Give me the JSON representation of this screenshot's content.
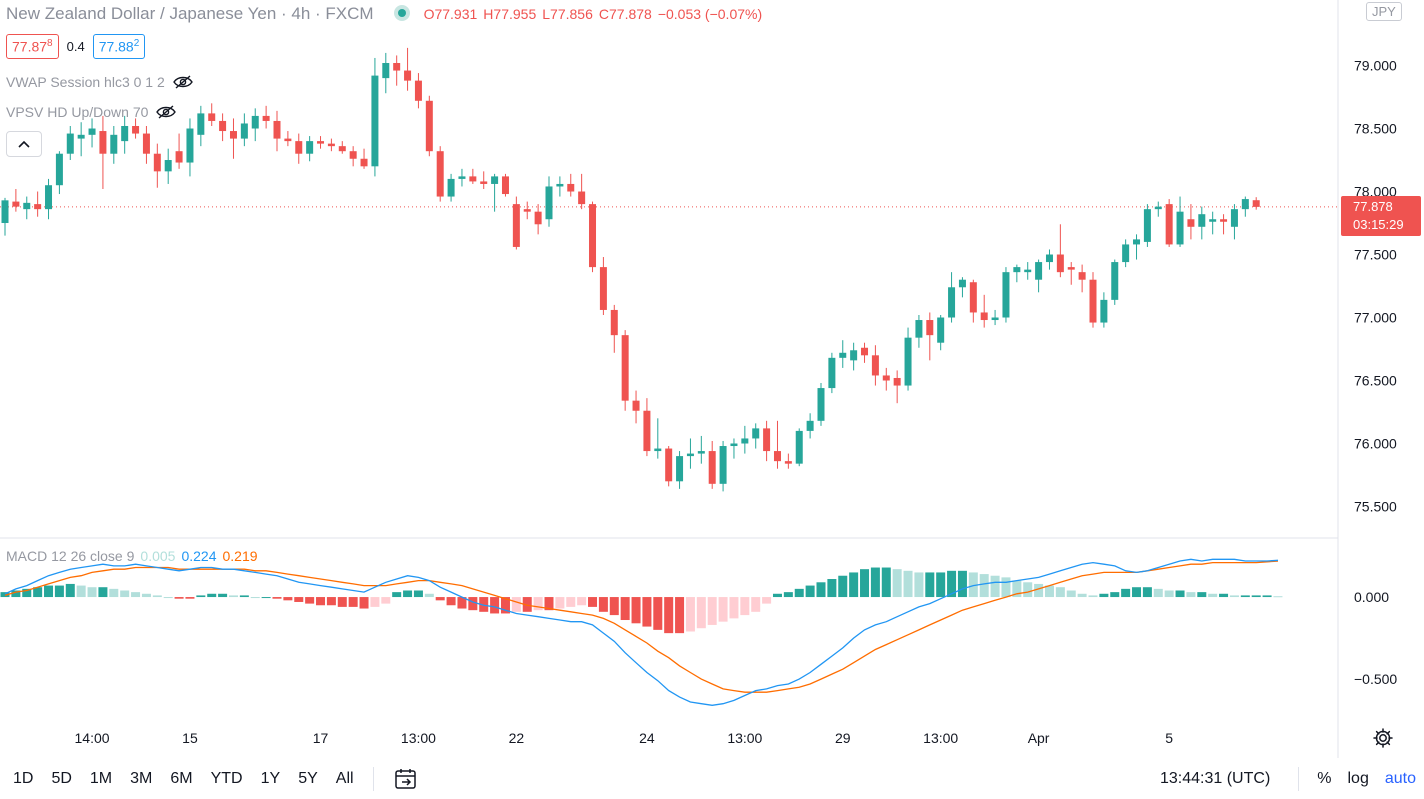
{
  "header": {
    "symbol_title": "New Zealand Dollar / Japanese Yen · 4h · FXCM",
    "ohlc": {
      "o_label": "O",
      "o_value": "77.931",
      "h_label": "H",
      "h_value": "77.955",
      "l_label": "L",
      "l_value": "77.856",
      "c_label": "C",
      "c_value": "77.878",
      "change": "−0.053 (−0.07%)"
    }
  },
  "quote": {
    "bid_main": "77.87",
    "bid_pip": "8",
    "spread": "0.4",
    "ask_main": "77.88",
    "ask_pip": "2"
  },
  "indicators": {
    "vwap": "VWAP Session hlc3 0 1 2",
    "vpsv": "VPSV HD Up/Down 70",
    "macd_label": "MACD 12 26 close 9",
    "macd_hist": "0.005",
    "macd_line": "0.224",
    "macd_signal": "0.219"
  },
  "price_axis": {
    "currency": "JPY",
    "last_price": "77.878",
    "countdown": "03:15:29"
  },
  "bottom_bar": {
    "ranges": [
      "1D",
      "5D",
      "1M",
      "3M",
      "6M",
      "YTD",
      "1Y",
      "5Y",
      "All"
    ],
    "time": "13:44:31 (UTC)",
    "percent": "%",
    "log": "log",
    "auto": "auto"
  },
  "colors": {
    "up": "#26a69a",
    "down": "#ef5350",
    "macd_line": "#2196f3",
    "signal_line": "#ff6d00",
    "hist_up_strong": "#26a69a",
    "hist_up_weak": "#b2dfdb",
    "hist_down_strong": "#ef5350",
    "hist_down_weak": "#ffcdd2"
  },
  "chart_data": {
    "type": "candlestick",
    "x_tick_labels": [
      "14:00",
      "15",
      "17",
      "13:00",
      "22",
      "24",
      "13:00",
      "29",
      "13:00",
      "Apr",
      "5"
    ],
    "x_tick_candle_index": [
      8,
      17,
      29,
      38,
      47,
      59,
      68,
      77,
      86,
      95,
      107
    ],
    "y_ticks": [
      75.5,
      76.0,
      76.5,
      77.0,
      77.5,
      78.0,
      78.5,
      79.0
    ],
    "y_tick_labels": [
      "75.500",
      "76.000",
      "76.500",
      "77.000",
      "77.500",
      "78.000",
      "78.500",
      "79.000"
    ],
    "ylim": [
      75.25,
      79.52
    ],
    "last_price": 77.878,
    "candles": [
      {
        "o": 77.75,
        "h": 77.95,
        "l": 77.65,
        "c": 77.93
      },
      {
        "o": 77.92,
        "h": 78.02,
        "l": 77.84,
        "c": 77.88
      },
      {
        "o": 77.86,
        "h": 77.96,
        "l": 77.78,
        "c": 77.91
      },
      {
        "o": 77.9,
        "h": 78.0,
        "l": 77.8,
        "c": 77.86
      },
      {
        "o": 77.86,
        "h": 78.1,
        "l": 77.78,
        "c": 78.05
      },
      {
        "o": 78.05,
        "h": 78.32,
        "l": 77.98,
        "c": 78.3
      },
      {
        "o": 78.3,
        "h": 78.52,
        "l": 78.25,
        "c": 78.46
      },
      {
        "o": 78.42,
        "h": 78.55,
        "l": 78.28,
        "c": 78.45
      },
      {
        "o": 78.45,
        "h": 78.58,
        "l": 78.35,
        "c": 78.5
      },
      {
        "o": 78.48,
        "h": 78.6,
        "l": 78.02,
        "c": 78.3
      },
      {
        "o": 78.3,
        "h": 78.52,
        "l": 78.22,
        "c": 78.45
      },
      {
        "o": 78.4,
        "h": 78.6,
        "l": 78.3,
        "c": 78.52
      },
      {
        "o": 78.52,
        "h": 78.58,
        "l": 78.42,
        "c": 78.46
      },
      {
        "o": 78.46,
        "h": 78.52,
        "l": 78.22,
        "c": 78.3
      },
      {
        "o": 78.3,
        "h": 78.38,
        "l": 78.03,
        "c": 78.16
      },
      {
        "o": 78.16,
        "h": 78.34,
        "l": 78.06,
        "c": 78.25
      },
      {
        "o": 78.32,
        "h": 78.46,
        "l": 78.18,
        "c": 78.23
      },
      {
        "o": 78.23,
        "h": 78.58,
        "l": 78.12,
        "c": 78.5
      },
      {
        "o": 78.45,
        "h": 78.68,
        "l": 78.36,
        "c": 78.62
      },
      {
        "o": 78.62,
        "h": 78.7,
        "l": 78.52,
        "c": 78.56
      },
      {
        "o": 78.56,
        "h": 78.62,
        "l": 78.4,
        "c": 78.48
      },
      {
        "o": 78.48,
        "h": 78.58,
        "l": 78.26,
        "c": 78.42
      },
      {
        "o": 78.42,
        "h": 78.62,
        "l": 78.36,
        "c": 78.54
      },
      {
        "o": 78.5,
        "h": 78.66,
        "l": 78.4,
        "c": 78.6
      },
      {
        "o": 78.6,
        "h": 78.68,
        "l": 78.5,
        "c": 78.56
      },
      {
        "o": 78.56,
        "h": 78.64,
        "l": 78.32,
        "c": 78.42
      },
      {
        "o": 78.42,
        "h": 78.48,
        "l": 78.36,
        "c": 78.4
      },
      {
        "o": 78.4,
        "h": 78.46,
        "l": 78.22,
        "c": 78.3
      },
      {
        "o": 78.3,
        "h": 78.44,
        "l": 78.24,
        "c": 78.4
      },
      {
        "o": 78.4,
        "h": 78.44,
        "l": 78.34,
        "c": 78.38
      },
      {
        "o": 78.38,
        "h": 78.42,
        "l": 78.32,
        "c": 78.36
      },
      {
        "o": 78.36,
        "h": 78.4,
        "l": 78.3,
        "c": 78.32
      },
      {
        "o": 78.32,
        "h": 78.36,
        "l": 78.2,
        "c": 78.26
      },
      {
        "o": 78.26,
        "h": 78.34,
        "l": 78.18,
        "c": 78.2
      },
      {
        "o": 78.2,
        "h": 79.06,
        "l": 78.12,
        "c": 78.92
      },
      {
        "o": 78.9,
        "h": 79.1,
        "l": 78.78,
        "c": 79.02
      },
      {
        "o": 79.02,
        "h": 79.08,
        "l": 78.84,
        "c": 78.96
      },
      {
        "o": 78.96,
        "h": 79.14,
        "l": 78.8,
        "c": 78.88
      },
      {
        "o": 78.88,
        "h": 78.94,
        "l": 78.66,
        "c": 78.72
      },
      {
        "o": 78.72,
        "h": 78.76,
        "l": 78.28,
        "c": 78.32
      },
      {
        "o": 78.32,
        "h": 78.36,
        "l": 77.92,
        "c": 77.96
      },
      {
        "o": 77.96,
        "h": 78.14,
        "l": 77.92,
        "c": 78.1
      },
      {
        "o": 78.1,
        "h": 78.18,
        "l": 78.04,
        "c": 78.12
      },
      {
        "o": 78.12,
        "h": 78.18,
        "l": 78.06,
        "c": 78.08
      },
      {
        "o": 78.08,
        "h": 78.16,
        "l": 78.02,
        "c": 78.06
      },
      {
        "o": 78.06,
        "h": 78.14,
        "l": 77.84,
        "c": 78.12
      },
      {
        "o": 78.12,
        "h": 78.14,
        "l": 77.96,
        "c": 77.98
      },
      {
        "o": 77.9,
        "h": 77.96,
        "l": 77.54,
        "c": 77.56
      },
      {
        "o": 77.86,
        "h": 77.92,
        "l": 77.78,
        "c": 77.84
      },
      {
        "o": 77.84,
        "h": 77.9,
        "l": 77.66,
        "c": 77.74
      },
      {
        "o": 77.78,
        "h": 78.12,
        "l": 77.72,
        "c": 78.04
      },
      {
        "o": 78.04,
        "h": 78.12,
        "l": 77.96,
        "c": 78.06
      },
      {
        "o": 78.06,
        "h": 78.14,
        "l": 77.96,
        "c": 78.0
      },
      {
        "o": 78.0,
        "h": 78.14,
        "l": 77.86,
        "c": 77.9
      },
      {
        "o": 77.9,
        "h": 77.92,
        "l": 77.36,
        "c": 77.4
      },
      {
        "o": 77.4,
        "h": 77.48,
        "l": 77.02,
        "c": 77.06
      },
      {
        "o": 77.06,
        "h": 77.1,
        "l": 76.72,
        "c": 76.86
      },
      {
        "o": 76.86,
        "h": 76.9,
        "l": 76.26,
        "c": 76.34
      },
      {
        "o": 76.34,
        "h": 76.42,
        "l": 76.16,
        "c": 76.26
      },
      {
        "o": 76.26,
        "h": 76.36,
        "l": 75.9,
        "c": 75.94
      },
      {
        "o": 75.94,
        "h": 76.2,
        "l": 75.88,
        "c": 75.96
      },
      {
        "o": 75.96,
        "h": 75.98,
        "l": 75.66,
        "c": 75.7
      },
      {
        "o": 75.7,
        "h": 75.94,
        "l": 75.64,
        "c": 75.9
      },
      {
        "o": 75.9,
        "h": 76.04,
        "l": 75.8,
        "c": 75.92
      },
      {
        "o": 75.92,
        "h": 76.06,
        "l": 75.84,
        "c": 75.94
      },
      {
        "o": 75.94,
        "h": 76.02,
        "l": 75.64,
        "c": 75.68
      },
      {
        "o": 75.68,
        "h": 76.02,
        "l": 75.62,
        "c": 75.98
      },
      {
        "o": 75.98,
        "h": 76.04,
        "l": 75.88,
        "c": 76.0
      },
      {
        "o": 76.0,
        "h": 76.14,
        "l": 75.92,
        "c": 76.04
      },
      {
        "o": 76.04,
        "h": 76.16,
        "l": 75.96,
        "c": 76.12
      },
      {
        "o": 76.12,
        "h": 76.18,
        "l": 75.86,
        "c": 75.94
      },
      {
        "o": 75.94,
        "h": 76.18,
        "l": 75.8,
        "c": 75.86
      },
      {
        "o": 75.86,
        "h": 75.92,
        "l": 75.8,
        "c": 75.84
      },
      {
        "o": 75.84,
        "h": 76.12,
        "l": 75.82,
        "c": 76.1
      },
      {
        "o": 76.1,
        "h": 76.24,
        "l": 76.04,
        "c": 76.18
      },
      {
        "o": 76.18,
        "h": 76.48,
        "l": 76.14,
        "c": 76.44
      },
      {
        "o": 76.44,
        "h": 76.72,
        "l": 76.4,
        "c": 76.68
      },
      {
        "o": 76.68,
        "h": 76.82,
        "l": 76.6,
        "c": 76.72
      },
      {
        "o": 76.66,
        "h": 76.8,
        "l": 76.58,
        "c": 76.74
      },
      {
        "o": 76.76,
        "h": 76.8,
        "l": 76.64,
        "c": 76.7
      },
      {
        "o": 76.7,
        "h": 76.78,
        "l": 76.46,
        "c": 76.54
      },
      {
        "o": 76.54,
        "h": 76.6,
        "l": 76.42,
        "c": 76.5
      },
      {
        "o": 76.52,
        "h": 76.58,
        "l": 76.32,
        "c": 76.46
      },
      {
        "o": 76.46,
        "h": 76.92,
        "l": 76.42,
        "c": 76.84
      },
      {
        "o": 76.84,
        "h": 77.02,
        "l": 76.76,
        "c": 76.98
      },
      {
        "o": 76.98,
        "h": 77.04,
        "l": 76.66,
        "c": 76.86
      },
      {
        "o": 76.8,
        "h": 77.02,
        "l": 76.74,
        "c": 77.0
      },
      {
        "o": 77.0,
        "h": 77.36,
        "l": 76.96,
        "c": 77.24
      },
      {
        "o": 77.24,
        "h": 77.32,
        "l": 77.16,
        "c": 77.3
      },
      {
        "o": 77.28,
        "h": 77.3,
        "l": 76.96,
        "c": 77.04
      },
      {
        "o": 77.04,
        "h": 77.18,
        "l": 76.92,
        "c": 76.98
      },
      {
        "o": 76.98,
        "h": 77.06,
        "l": 76.94,
        "c": 77.0
      },
      {
        "o": 77.0,
        "h": 77.4,
        "l": 76.96,
        "c": 77.36
      },
      {
        "o": 77.36,
        "h": 77.42,
        "l": 77.28,
        "c": 77.4
      },
      {
        "o": 77.36,
        "h": 77.44,
        "l": 77.3,
        "c": 77.38
      },
      {
        "o": 77.3,
        "h": 77.46,
        "l": 77.2,
        "c": 77.44
      },
      {
        "o": 77.44,
        "h": 77.54,
        "l": 77.38,
        "c": 77.5
      },
      {
        "o": 77.5,
        "h": 77.74,
        "l": 77.32,
        "c": 77.36
      },
      {
        "o": 77.4,
        "h": 77.44,
        "l": 77.26,
        "c": 77.38
      },
      {
        "o": 77.36,
        "h": 77.42,
        "l": 77.2,
        "c": 77.3
      },
      {
        "o": 77.3,
        "h": 77.36,
        "l": 76.92,
        "c": 76.96
      },
      {
        "o": 76.96,
        "h": 77.2,
        "l": 76.92,
        "c": 77.14
      },
      {
        "o": 77.14,
        "h": 77.46,
        "l": 77.1,
        "c": 77.44
      },
      {
        "o": 77.44,
        "h": 77.62,
        "l": 77.4,
        "c": 77.58
      },
      {
        "o": 77.58,
        "h": 77.66,
        "l": 77.46,
        "c": 77.62
      },
      {
        "o": 77.6,
        "h": 77.9,
        "l": 77.56,
        "c": 77.86
      },
      {
        "o": 77.86,
        "h": 77.92,
        "l": 77.8,
        "c": 77.88
      },
      {
        "o": 77.9,
        "h": 77.94,
        "l": 77.56,
        "c": 77.58
      },
      {
        "o": 77.58,
        "h": 77.96,
        "l": 77.56,
        "c": 77.84
      },
      {
        "o": 77.78,
        "h": 77.9,
        "l": 77.62,
        "c": 77.72
      },
      {
        "o": 77.72,
        "h": 77.88,
        "l": 77.62,
        "c": 77.82
      },
      {
        "o": 77.76,
        "h": 77.84,
        "l": 77.66,
        "c": 77.78
      },
      {
        "o": 77.78,
        "h": 77.82,
        "l": 77.66,
        "c": 77.76
      },
      {
        "o": 77.72,
        "h": 77.9,
        "l": 77.62,
        "c": 77.86
      },
      {
        "o": 77.86,
        "h": 77.96,
        "l": 77.8,
        "c": 77.94
      },
      {
        "o": 77.931,
        "h": 77.955,
        "l": 77.856,
        "c": 77.878
      }
    ],
    "macd": {
      "y_ticks": [
        -0.5,
        0.0
      ],
      "y_tick_labels": [
        "−0.500",
        "0.000"
      ],
      "ylim": [
        -0.78,
        0.36
      ],
      "macd_line": [
        0.02,
        0.05,
        0.07,
        0.1,
        0.13,
        0.15,
        0.17,
        0.18,
        0.19,
        0.2,
        0.19,
        0.19,
        0.2,
        0.19,
        0.18,
        0.17,
        0.16,
        0.17,
        0.18,
        0.18,
        0.17,
        0.17,
        0.16,
        0.15,
        0.14,
        0.13,
        0.11,
        0.09,
        0.08,
        0.07,
        0.06,
        0.05,
        0.04,
        0.03,
        0.06,
        0.09,
        0.11,
        0.13,
        0.12,
        0.1,
        0.06,
        0.03,
        0.0,
        -0.03,
        -0.05,
        -0.06,
        -0.08,
        -0.1,
        -0.11,
        -0.12,
        -0.13,
        -0.14,
        -0.15,
        -0.15,
        -0.17,
        -0.22,
        -0.27,
        -0.34,
        -0.4,
        -0.46,
        -0.51,
        -0.57,
        -0.61,
        -0.64,
        -0.65,
        -0.66,
        -0.65,
        -0.63,
        -0.6,
        -0.57,
        -0.56,
        -0.54,
        -0.53,
        -0.5,
        -0.46,
        -0.41,
        -0.36,
        -0.31,
        -0.25,
        -0.2,
        -0.17,
        -0.15,
        -0.12,
        -0.09,
        -0.06,
        -0.04,
        -0.01,
        0.02,
        0.05,
        0.07,
        0.08,
        0.09,
        0.09,
        0.1,
        0.11,
        0.12,
        0.14,
        0.16,
        0.18,
        0.2,
        0.21,
        0.2,
        0.19,
        0.16,
        0.15,
        0.16,
        0.18,
        0.2,
        0.22,
        0.23,
        0.22,
        0.23,
        0.23,
        0.23,
        0.22,
        0.22,
        0.22,
        0.224
      ],
      "signal_line": [
        0.01,
        0.03,
        0.04,
        0.06,
        0.08,
        0.1,
        0.12,
        0.13,
        0.15,
        0.16,
        0.17,
        0.17,
        0.18,
        0.18,
        0.18,
        0.18,
        0.17,
        0.17,
        0.17,
        0.17,
        0.17,
        0.17,
        0.17,
        0.16,
        0.16,
        0.15,
        0.14,
        0.13,
        0.12,
        0.11,
        0.1,
        0.09,
        0.08,
        0.07,
        0.07,
        0.07,
        0.08,
        0.09,
        0.1,
        0.1,
        0.09,
        0.08,
        0.07,
        0.05,
        0.03,
        0.01,
        -0.01,
        -0.03,
        -0.05,
        -0.06,
        -0.07,
        -0.08,
        -0.09,
        -0.1,
        -0.11,
        -0.13,
        -0.16,
        -0.2,
        -0.24,
        -0.28,
        -0.33,
        -0.37,
        -0.42,
        -0.46,
        -0.5,
        -0.53,
        -0.56,
        -0.57,
        -0.58,
        -0.58,
        -0.58,
        -0.57,
        -0.56,
        -0.55,
        -0.53,
        -0.5,
        -0.47,
        -0.44,
        -0.4,
        -0.36,
        -0.32,
        -0.29,
        -0.26,
        -0.23,
        -0.2,
        -0.17,
        -0.14,
        -0.11,
        -0.08,
        -0.06,
        -0.04,
        -0.02,
        0.0,
        0.02,
        0.03,
        0.05,
        0.07,
        0.09,
        0.11,
        0.13,
        0.14,
        0.15,
        0.15,
        0.15,
        0.15,
        0.16,
        0.17,
        0.18,
        0.19,
        0.2,
        0.2,
        0.21,
        0.21,
        0.21,
        0.21,
        0.21,
        0.215,
        0.219
      ],
      "histogram": [
        0.03,
        0.04,
        0.05,
        0.06,
        0.07,
        0.07,
        0.08,
        0.07,
        0.06,
        0.06,
        0.05,
        0.04,
        0.03,
        0.02,
        0.01,
        0.0,
        -0.01,
        -0.01,
        0.01,
        0.02,
        0.02,
        0.01,
        0.01,
        0.0,
        0.0,
        -0.01,
        -0.02,
        -0.03,
        -0.04,
        -0.05,
        -0.05,
        -0.06,
        -0.06,
        -0.07,
        -0.06,
        -0.04,
        0.03,
        0.04,
        0.04,
        0.02,
        -0.02,
        -0.05,
        -0.07,
        -0.08,
        -0.09,
        -0.1,
        -0.1,
        -0.09,
        -0.09,
        -0.08,
        -0.08,
        -0.07,
        -0.06,
        -0.05,
        -0.06,
        -0.09,
        -0.11,
        -0.14,
        -0.16,
        -0.18,
        -0.2,
        -0.22,
        -0.22,
        -0.21,
        -0.19,
        -0.17,
        -0.15,
        -0.13,
        -0.11,
        -0.09,
        -0.04,
        0.02,
        0.03,
        0.05,
        0.07,
        0.09,
        0.11,
        0.13,
        0.15,
        0.17,
        0.18,
        0.18,
        0.17,
        0.16,
        0.15,
        0.15,
        0.15,
        0.16,
        0.16,
        0.15,
        0.14,
        0.13,
        0.12,
        0.1,
        0.09,
        0.08,
        0.07,
        0.06,
        0.04,
        0.02,
        0.01,
        0.02,
        0.03,
        0.05,
        0.06,
        0.06,
        0.05,
        0.04,
        0.04,
        0.03,
        0.03,
        0.02,
        0.02,
        0.01,
        0.01,
        0.01,
        0.01,
        0.005
      ]
    }
  }
}
